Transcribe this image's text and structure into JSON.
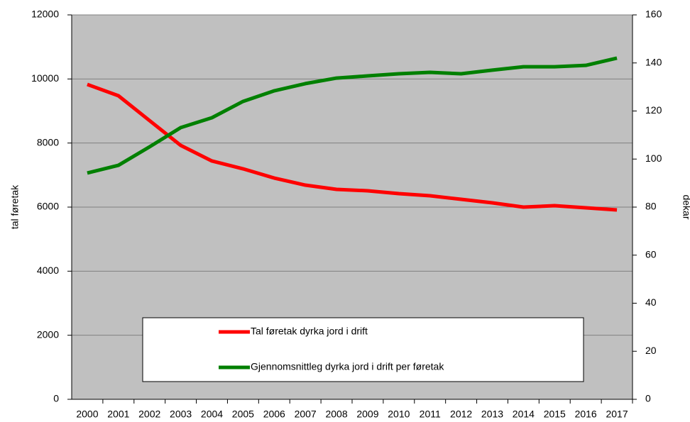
{
  "chart_data": {
    "type": "line",
    "categories": [
      "2000",
      "2001",
      "2002",
      "2003",
      "2004",
      "2005",
      "2006",
      "2007",
      "2008",
      "2009",
      "2010",
      "2011",
      "2012",
      "2013",
      "2014",
      "2015",
      "2016",
      "2017"
    ],
    "series": [
      {
        "name": "Tal føretak dyrka jord i drift",
        "color": "#ff0000",
        "axis": "y",
        "values": [
          9830,
          9476,
          8700,
          7926,
          7440,
          7195,
          6907,
          6686,
          6553,
          6509,
          6420,
          6354,
          6243,
          6133,
          6000,
          6044,
          5977,
          5911
        ]
      },
      {
        "name": "Gjennomsnittleg dyrka jord i drift per føretak",
        "color": "#008000",
        "axis": "y2",
        "values": [
          94.2,
          97.4,
          105.1,
          113.1,
          117.2,
          124.0,
          128.4,
          131.4,
          133.7,
          134.6,
          135.5,
          136.1,
          135.5,
          137.0,
          138.4,
          138.4,
          139.0,
          142.0
        ]
      }
    ],
    "ylabel": "tal føretak",
    "y2label": "dekar",
    "ylim": [
      0,
      12000
    ],
    "yticks": [
      0,
      2000,
      4000,
      6000,
      8000,
      10000,
      12000
    ],
    "y2lim": [
      0,
      160
    ],
    "y2ticks": [
      0,
      20,
      40,
      60,
      80,
      100,
      120,
      140,
      160
    ],
    "grid": true
  }
}
